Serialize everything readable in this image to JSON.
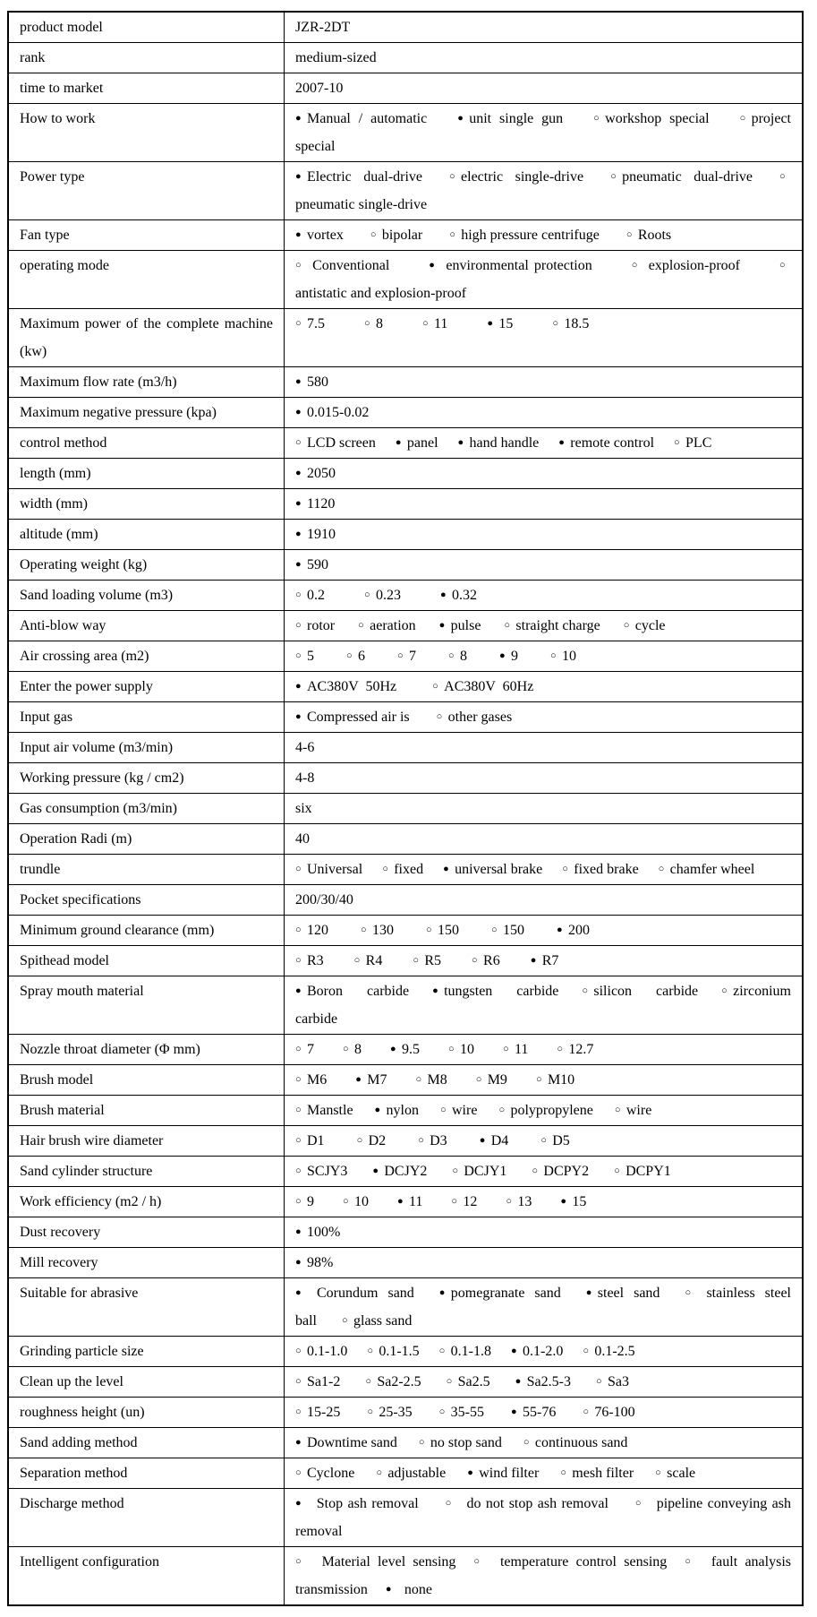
{
  "table": {
    "rows": [
      {
        "label": "product model",
        "value": "JZR-2DT"
      },
      {
        "label": "rank",
        "value": "medium-sized"
      },
      {
        "label": "time to market",
        "value": "2007-10"
      },
      {
        "label": "How to work",
        "gap": 34,
        "options": [
          {
            "filled": true,
            "text": "Manual / automatic"
          },
          {
            "filled": true,
            "text": "unit single gun"
          },
          {
            "filled": false,
            "text": "workshop special"
          },
          {
            "filled": false,
            "text": "project special"
          }
        ]
      },
      {
        "label": "Power type",
        "gap": 30,
        "options": [
          {
            "filled": true,
            "text": "Electric dual-drive"
          },
          {
            "filled": false,
            "text": "electric single-drive"
          },
          {
            "filled": false,
            "text": "pneumatic dual-drive"
          },
          {
            "filled": false,
            "text": "pneumatic single-drive"
          }
        ]
      },
      {
        "label": "Fan type",
        "gap": 30,
        "options": [
          {
            "filled": true,
            "text": "vortex"
          },
          {
            "filled": false,
            "text": "bipolar"
          },
          {
            "filled": false,
            "text": "high pressure centrifuge"
          },
          {
            "filled": false,
            "text": "Roots"
          }
        ]
      },
      {
        "label": "operating mode",
        "gap": 44,
        "options": [
          {
            "filled": false,
            "text": " Conventional"
          },
          {
            "filled": true,
            "text": " environmental protection"
          },
          {
            "filled": false,
            "text": " explosion-proof"
          },
          {
            "filled": false,
            "text": "antistatic and explosion-proof"
          }
        ]
      },
      {
        "label": "Maximum power of the complete machine (kw)",
        "gap": 44,
        "options": [
          {
            "filled": false,
            "text": "7.5"
          },
          {
            "filled": false,
            "text": "8"
          },
          {
            "filled": false,
            "text": "11"
          },
          {
            "filled": true,
            "text": "15"
          },
          {
            "filled": false,
            "text": "18.5"
          }
        ]
      },
      {
        "label": "Maximum flow rate (m3/h)",
        "options": [
          {
            "filled": true,
            "text": "580"
          }
        ]
      },
      {
        "label": "Maximum negative pressure (kpa)",
        "options": [
          {
            "filled": true,
            "text": "0.015-0.02"
          }
        ]
      },
      {
        "label": "control method",
        "gap": 22,
        "options": [
          {
            "filled": false,
            "text": "LCD screen"
          },
          {
            "filled": true,
            "text": "panel"
          },
          {
            "filled": true,
            "text": "hand handle"
          },
          {
            "filled": true,
            "text": "remote control"
          },
          {
            "filled": false,
            "text": "PLC"
          }
        ]
      },
      {
        "label": "length (mm)",
        "options": [
          {
            "filled": true,
            "text": "2050"
          }
        ]
      },
      {
        "label": "width (mm)",
        "options": [
          {
            "filled": true,
            "text": "1120"
          }
        ]
      },
      {
        "label": "altitude (mm)",
        "options": [
          {
            "filled": true,
            "text": "1910"
          }
        ]
      },
      {
        "label": "Operating weight (kg)",
        "options": [
          {
            "filled": true,
            "text": "590"
          }
        ]
      },
      {
        "label": "Sand loading volume (m3)",
        "gap": 44,
        "options": [
          {
            "filled": false,
            "text": "0.2"
          },
          {
            "filled": false,
            "text": "0.23"
          },
          {
            "filled": true,
            "text": "0.32"
          }
        ]
      },
      {
        "label": "Anti-blow way",
        "gap": 26,
        "options": [
          {
            "filled": false,
            "text": "rotor"
          },
          {
            "filled": false,
            "text": "aeration"
          },
          {
            "filled": true,
            "text": "pulse"
          },
          {
            "filled": false,
            "text": "straight charge"
          },
          {
            "filled": false,
            "text": "cycle"
          }
        ]
      },
      {
        "label": "Air crossing area (m2)",
        "gap": 36,
        "options": [
          {
            "filled": false,
            "text": "5"
          },
          {
            "filled": false,
            "text": "6"
          },
          {
            "filled": false,
            "text": "7"
          },
          {
            "filled": false,
            "text": "8"
          },
          {
            "filled": true,
            "text": "9"
          },
          {
            "filled": false,
            "text": "10"
          }
        ]
      },
      {
        "label": "Enter the power supply",
        "gap": 40,
        "options": [
          {
            "filled": true,
            "text": "AC380V  50Hz"
          },
          {
            "filled": false,
            "text": "AC380V  60Hz"
          }
        ]
      },
      {
        "label": "Input gas",
        "gap": 30,
        "options": [
          {
            "filled": true,
            "text": "Compressed air is"
          },
          {
            "filled": false,
            "text": "other gases"
          }
        ]
      },
      {
        "label": "Input air volume (m3/min)",
        "value": "4-6"
      },
      {
        "label": "Working pressure (kg / cm2)",
        "value": "4-8"
      },
      {
        "label": "Gas consumption (m3/min)",
        "value": "six"
      },
      {
        "label": "Operation Radi (m)",
        "value": "40"
      },
      {
        "label": "trundle",
        "gap": 22,
        "options": [
          {
            "filled": false,
            "text": "Universal"
          },
          {
            "filled": false,
            "text": "fixed"
          },
          {
            "filled": true,
            "text": "universal brake"
          },
          {
            "filled": false,
            "text": "fixed brake"
          },
          {
            "filled": false,
            "text": "chamfer wheel"
          }
        ]
      },
      {
        "label": "Pocket specifications",
        "value": "200/30/40"
      },
      {
        "label": "Minimum ground clearance (mm)",
        "gap": 36,
        "options": [
          {
            "filled": false,
            "text": "120"
          },
          {
            "filled": false,
            "text": "130"
          },
          {
            "filled": false,
            "text": "150"
          },
          {
            "filled": false,
            "text": "150"
          },
          {
            "filled": true,
            "text": "200"
          }
        ]
      },
      {
        "label": "Spithead model",
        "gap": 34,
        "options": [
          {
            "filled": false,
            "text": "R3"
          },
          {
            "filled": false,
            "text": "R4"
          },
          {
            "filled": false,
            "text": "R5"
          },
          {
            "filled": false,
            "text": "R6"
          },
          {
            "filled": true,
            "text": "R7"
          }
        ]
      },
      {
        "label": "Spray mouth material",
        "gap": 26,
        "options": [
          {
            "filled": true,
            "text": "Boron carbide"
          },
          {
            "filled": true,
            "text": "tungsten carbide"
          },
          {
            "filled": false,
            "text": "silicon carbide"
          },
          {
            "filled": false,
            "text": "zirconium carbide"
          }
        ]
      },
      {
        "label": "Nozzle throat diameter (Φ mm)",
        "gap": 32,
        "options": [
          {
            "filled": false,
            "text": "7"
          },
          {
            "filled": false,
            "text": "8"
          },
          {
            "filled": true,
            "text": "9.5"
          },
          {
            "filled": false,
            "text": "10"
          },
          {
            "filled": false,
            "text": "11"
          },
          {
            "filled": false,
            "text": "12.7"
          }
        ]
      },
      {
        "label": "Brush model",
        "gap": 32,
        "options": [
          {
            "filled": false,
            "text": "M6"
          },
          {
            "filled": true,
            "text": "M7"
          },
          {
            "filled": false,
            "text": "M8"
          },
          {
            "filled": false,
            "text": "M9"
          },
          {
            "filled": false,
            "text": "M10"
          }
        ]
      },
      {
        "label": "Brush material",
        "gap": 24,
        "options": [
          {
            "filled": false,
            "text": "Manstle"
          },
          {
            "filled": true,
            "text": "nylon"
          },
          {
            "filled": false,
            "text": "wire"
          },
          {
            "filled": false,
            "text": "polypropylene"
          },
          {
            "filled": false,
            "text": "wire"
          }
        ]
      },
      {
        "label": "Hair brush wire diameter",
        "gap": 36,
        "options": [
          {
            "filled": false,
            "text": "D1"
          },
          {
            "filled": false,
            "text": "D2"
          },
          {
            "filled": false,
            "text": "D3"
          },
          {
            "filled": true,
            "text": "D4"
          },
          {
            "filled": false,
            "text": "D5"
          }
        ]
      },
      {
        "label": "Sand cylinder structure",
        "gap": 28,
        "options": [
          {
            "filled": false,
            "text": "SCJY3"
          },
          {
            "filled": true,
            "text": "DCJY2"
          },
          {
            "filled": false,
            "text": "DCJY1"
          },
          {
            "filled": false,
            "text": "DCPY2"
          },
          {
            "filled": false,
            "text": "DCPY1"
          }
        ]
      },
      {
        "label": "Work efficiency (m2 / h)",
        "gap": 32,
        "options": [
          {
            "filled": false,
            "text": "9"
          },
          {
            "filled": false,
            "text": "10"
          },
          {
            "filled": true,
            "text": "11"
          },
          {
            "filled": false,
            "text": "12"
          },
          {
            "filled": false,
            "text": "13"
          },
          {
            "filled": true,
            "text": "15"
          }
        ]
      },
      {
        "label": "Dust recovery",
        "options": [
          {
            "filled": true,
            "text": "100%"
          }
        ]
      },
      {
        "label": "Mill recovery",
        "options": [
          {
            "filled": true,
            "text": "98%"
          }
        ]
      },
      {
        "label": "Suitable for abrasive",
        "gap": 28,
        "options": [
          {
            "filled": true,
            "text": " Corundum sand"
          },
          {
            "filled": true,
            "text": "pomegranate sand"
          },
          {
            "filled": true,
            "text": "steel sand"
          },
          {
            "filled": false,
            "text": " stainless steel ball"
          },
          {
            "filled": false,
            "text": "glass sand"
          }
        ]
      },
      {
        "label": "Grinding particle size",
        "gap": 22,
        "options": [
          {
            "filled": false,
            "text": "0.1-1.0"
          },
          {
            "filled": false,
            "text": "0.1-1.5"
          },
          {
            "filled": false,
            "text": "0.1-1.8"
          },
          {
            "filled": true,
            "text": "0.1-2.0"
          },
          {
            "filled": false,
            "text": "0.1-2.5"
          }
        ]
      },
      {
        "label": "Clean up the level",
        "gap": 28,
        "options": [
          {
            "filled": false,
            "text": "Sa1-2"
          },
          {
            "filled": false,
            "text": "Sa2-2.5"
          },
          {
            "filled": false,
            "text": "Sa2.5"
          },
          {
            "filled": true,
            "text": "Sa2.5-3"
          },
          {
            "filled": false,
            "text": "Sa3"
          }
        ]
      },
      {
        "label": "roughness height (un)",
        "gap": 30,
        "options": [
          {
            "filled": false,
            "text": "15-25"
          },
          {
            "filled": false,
            "text": "25-35"
          },
          {
            "filled": false,
            "text": "35-55"
          },
          {
            "filled": true,
            "text": "55-76"
          },
          {
            "filled": false,
            "text": "76-100"
          }
        ]
      },
      {
        "label": "Sand adding method",
        "gap": 24,
        "options": [
          {
            "filled": true,
            "text": "Downtime sand"
          },
          {
            "filled": false,
            "text": "no stop sand"
          },
          {
            "filled": false,
            "text": "continuous sand"
          }
        ]
      },
      {
        "label": "Separation method",
        "gap": 24,
        "options": [
          {
            "filled": false,
            "text": "Cyclone"
          },
          {
            "filled": false,
            "text": "adjustable"
          },
          {
            "filled": true,
            "text": "wind filter"
          },
          {
            "filled": false,
            "text": "mesh filter"
          },
          {
            "filled": false,
            "text": "scale"
          }
        ]
      },
      {
        "label": "Discharge method",
        "gap": 30,
        "options": [
          {
            "filled": true,
            "text": "  Stop ash removal"
          },
          {
            "filled": false,
            "text": "  do not stop ash removal"
          },
          {
            "filled": false,
            "text": "  pipeline conveying ash removal"
          }
        ]
      },
      {
        "label": "Intelligent configuration",
        "gap": 20,
        "options": [
          {
            "filled": false,
            "text": "  Material level sensing"
          },
          {
            "filled": false,
            "text": "  temperature control sensing"
          },
          {
            "filled": false,
            "text": "  fault analysis transmission"
          },
          {
            "filled": true,
            "text": "  none"
          }
        ]
      }
    ]
  },
  "icons": {
    "bullet_filled": "●",
    "bullet_empty": "○"
  },
  "colors": {
    "border": "#000000",
    "text": "#000000",
    "background": "#ffffff"
  }
}
